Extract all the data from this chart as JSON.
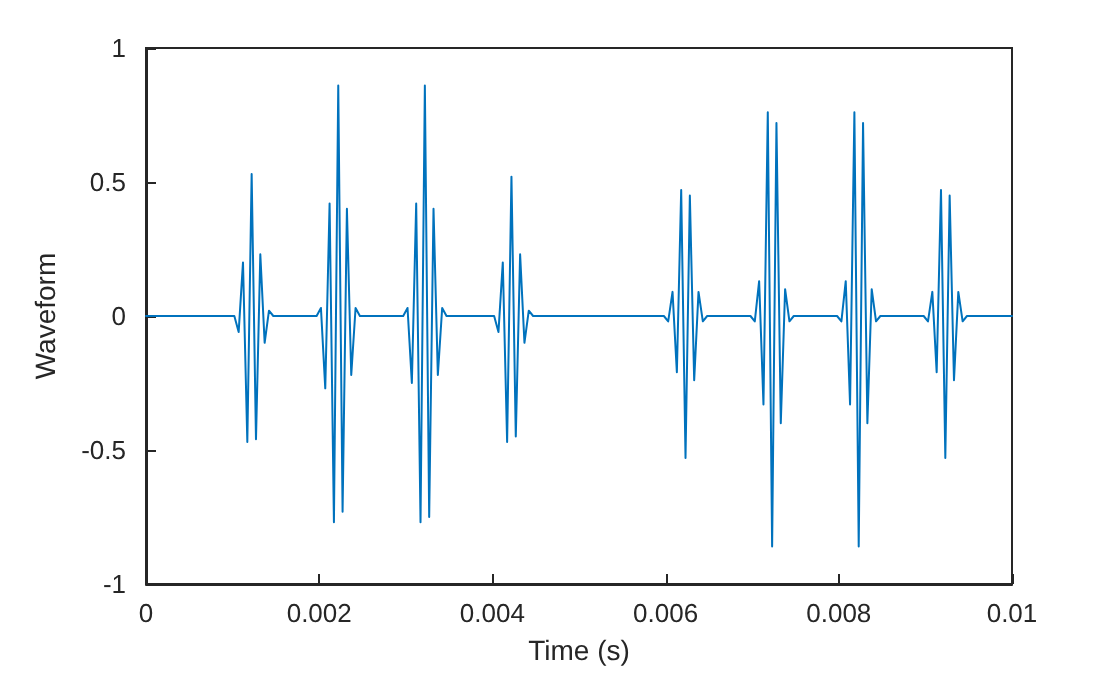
{
  "chart_data": {
    "type": "line",
    "xlabel": "Time (s)",
    "ylabel": "Waveform",
    "xlim": [
      0,
      0.01
    ],
    "xticks": [
      0,
      0.002,
      0.004,
      0.006,
      0.008,
      0.01
    ],
    "ylim": [
      -1,
      1
    ],
    "yticks": [
      -1,
      -0.5,
      0,
      0.5,
      1
    ],
    "marker": "none",
    "line_style": "solid",
    "series": [
      {
        "color": "#0072bd",
        "x": [
          0,
          0.00097,
          0.00102,
          0.00107,
          0.00112,
          0.00117,
          0.00122,
          0.00127,
          0.00132,
          0.00137,
          0.00142,
          0.00147,
          0.00197,
          0.00202,
          0.00207,
          0.00212,
          0.00217,
          0.00222,
          0.00227,
          0.00232,
          0.00237,
          0.00242,
          0.00247,
          0.00297,
          0.00302,
          0.00307,
          0.00312,
          0.00317,
          0.00322,
          0.00327,
          0.00332,
          0.00337,
          0.00342,
          0.00347,
          0.00397,
          0.00402,
          0.00407,
          0.00412,
          0.00417,
          0.00422,
          0.00427,
          0.00432,
          0.00437,
          0.00442,
          0.00447,
          0.00598,
          0.00603,
          0.00608,
          0.00613,
          0.00618,
          0.00623,
          0.00628,
          0.00633,
          0.00638,
          0.00643,
          0.00648,
          0.00698,
          0.00703,
          0.00708,
          0.00713,
          0.00718,
          0.00723,
          0.00728,
          0.00733,
          0.00738,
          0.00743,
          0.00748,
          0.00798,
          0.00803,
          0.00808,
          0.00813,
          0.00818,
          0.00823,
          0.00828,
          0.00833,
          0.00838,
          0.00843,
          0.00848,
          0.00898,
          0.00903,
          0.00908,
          0.00913,
          0.00918,
          0.00923,
          0.00928,
          0.00933,
          0.00938,
          0.00943,
          0.00948,
          0.01
        ],
        "values": [
          0,
          0,
          0,
          -0.06,
          0.2,
          -0.47,
          0.53,
          -0.46,
          0.23,
          -0.1,
          0.02,
          0,
          0,
          0.03,
          -0.27,
          0.42,
          -0.77,
          0.86,
          -0.73,
          0.4,
          -0.22,
          0.03,
          0,
          0,
          0.03,
          -0.25,
          0.42,
          -0.77,
          0.86,
          -0.75,
          0.4,
          -0.22,
          0.03,
          0,
          0,
          0,
          -0.06,
          0.2,
          -0.47,
          0.52,
          -0.45,
          0.23,
          -0.1,
          0.02,
          0,
          0,
          -0.02,
          0.09,
          -0.21,
          0.47,
          -0.53,
          0.45,
          -0.24,
          0.09,
          -0.02,
          0,
          0,
          -0.02,
          0.13,
          -0.33,
          0.76,
          -0.86,
          0.72,
          -0.4,
          0.1,
          -0.02,
          0,
          0,
          -0.02,
          0.13,
          -0.33,
          0.76,
          -0.86,
          0.72,
          -0.4,
          0.1,
          -0.02,
          0,
          0,
          -0.02,
          0.09,
          -0.21,
          0.47,
          -0.53,
          0.45,
          -0.24,
          0.09,
          -0.02,
          0,
          0
        ]
      }
    ]
  }
}
